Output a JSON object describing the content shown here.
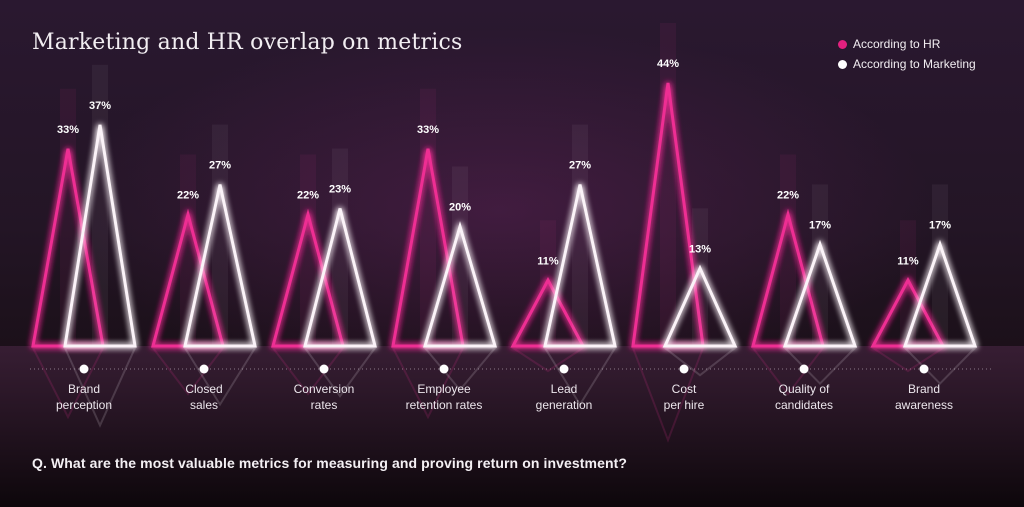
{
  "page": {
    "title": "Marketing and HR overlap on metrics",
    "question": "Q. What are the most valuable metrics for measuring and proving return on investment?"
  },
  "legend": [
    {
      "label": "According to HR",
      "color": "#e3207f"
    },
    {
      "label": "According to Marketing",
      "color": "#ffffff"
    }
  ],
  "chart_data": {
    "type": "bar",
    "title": "Marketing and HR overlap on metrics",
    "xlabel": "",
    "ylabel": "",
    "ylim": [
      0,
      44
    ],
    "grid": false,
    "legend_position": "top-right",
    "categories": [
      [
        "Brand",
        "perception"
      ],
      [
        "Closed",
        "sales"
      ],
      [
        "Conversion",
        "rates"
      ],
      [
        "Employee",
        "retention rates"
      ],
      [
        "Lead",
        "generation"
      ],
      [
        "Cost",
        "per hire"
      ],
      [
        "Quality of",
        "candidates"
      ],
      [
        "Brand",
        "awareness"
      ]
    ],
    "series": [
      {
        "name": "According to HR",
        "color": "#e3207f",
        "values": [
          33,
          22,
          22,
          33,
          11,
          44,
          22,
          11
        ]
      },
      {
        "name": "According to Marketing",
        "color": "#ffffff",
        "values": [
          37,
          27,
          23,
          20,
          27,
          13,
          17,
          17
        ]
      }
    ],
    "value_labels": [
      [
        "33%",
        "37%"
      ],
      [
        "22%",
        "27%"
      ],
      [
        "22%",
        "23%"
      ],
      [
        "33%",
        "20%"
      ],
      [
        "11%",
        "27%"
      ],
      [
        "44%",
        "13%"
      ],
      [
        "22%",
        "17%"
      ],
      [
        "11%",
        "17%"
      ]
    ]
  }
}
